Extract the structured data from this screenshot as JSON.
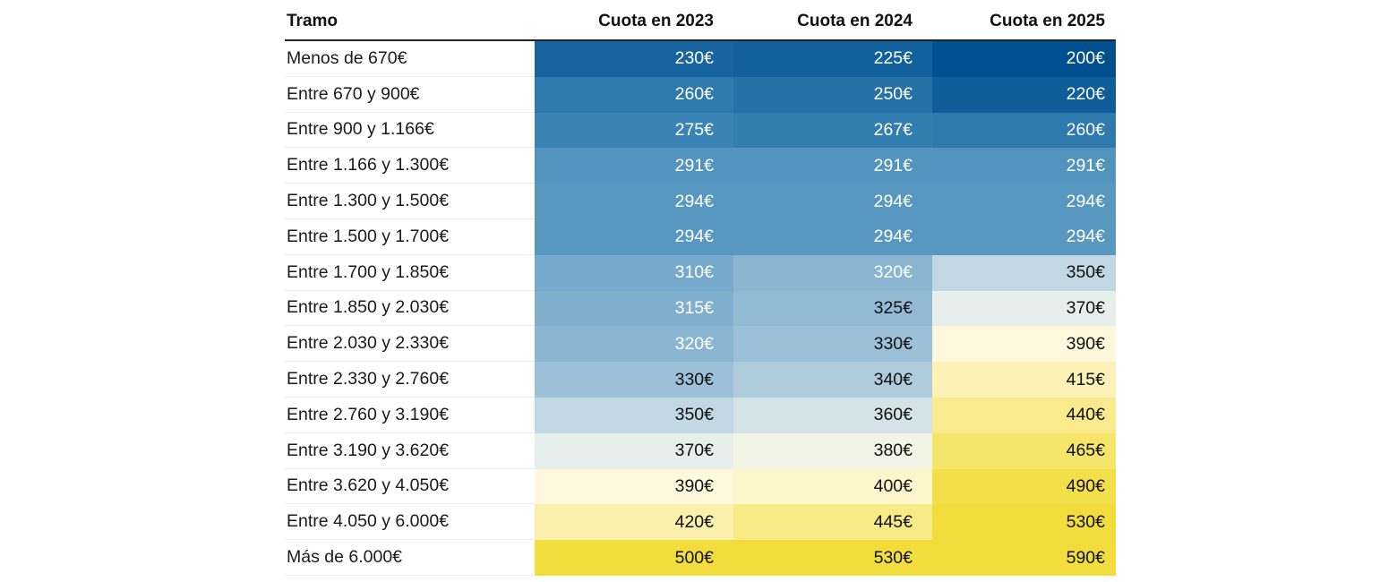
{
  "chart_data": {
    "type": "table",
    "title": "",
    "columns": [
      "Tramo",
      "Cuota en 2023",
      "Cuota en 2024",
      "Cuota en 2025"
    ],
    "years": [
      2023,
      2024,
      2025
    ],
    "rows": [
      {
        "tramo": "Menos de 670€",
        "values": [
          230,
          225,
          200
        ],
        "labels": [
          "230€",
          "225€",
          "200€"
        ]
      },
      {
        "tramo": "Entre 670 y 900€",
        "values": [
          260,
          250,
          220
        ],
        "labels": [
          "260€",
          "250€",
          "220€"
        ]
      },
      {
        "tramo": "Entre 900 y 1.166€",
        "values": [
          275,
          267,
          260
        ],
        "labels": [
          "275€",
          "267€",
          "260€"
        ]
      },
      {
        "tramo": "Entre 1.166 y 1.300€",
        "values": [
          291,
          291,
          291
        ],
        "labels": [
          "291€",
          "291€",
          "291€"
        ]
      },
      {
        "tramo": "Entre 1.300 y 1.500€",
        "values": [
          294,
          294,
          294
        ],
        "labels": [
          "294€",
          "294€",
          "294€"
        ]
      },
      {
        "tramo": "Entre 1.500 y 1.700€",
        "values": [
          294,
          294,
          294
        ],
        "labels": [
          "294€",
          "294€",
          "294€"
        ]
      },
      {
        "tramo": "Entre 1.700 y 1.850€",
        "values": [
          310,
          320,
          350
        ],
        "labels": [
          "310€",
          "320€",
          "350€"
        ]
      },
      {
        "tramo": "Entre 1.850 y 2.030€",
        "values": [
          315,
          325,
          370
        ],
        "labels": [
          "315€",
          "325€",
          "370€"
        ]
      },
      {
        "tramo": "Entre 2.030 y 2.330€",
        "values": [
          320,
          330,
          390
        ],
        "labels": [
          "320€",
          "330€",
          "390€"
        ]
      },
      {
        "tramo": "Entre 2.330 y 2.760€",
        "values": [
          330,
          340,
          415
        ],
        "labels": [
          "330€",
          "340€",
          "415€"
        ]
      },
      {
        "tramo": "Entre 2.760 y 3.190€",
        "values": [
          350,
          360,
          440
        ],
        "labels": [
          "350€",
          "360€",
          "440€"
        ]
      },
      {
        "tramo": "Entre 3.190 y 3.620€",
        "values": [
          370,
          380,
          465
        ],
        "labels": [
          "370€",
          "380€",
          "465€"
        ]
      },
      {
        "tramo": "Entre 3.620 y 4.050€",
        "values": [
          390,
          400,
          490
        ],
        "labels": [
          "390€",
          "400€",
          "490€"
        ]
      },
      {
        "tramo": "Entre 4.050 y 6.000€",
        "values": [
          420,
          445,
          530
        ],
        "labels": [
          "420€",
          "445€",
          "530€"
        ]
      },
      {
        "tramo": "Más de 6.000€",
        "values": [
          500,
          530,
          590
        ],
        "labels": [
          "500€",
          "530€",
          "590€"
        ]
      }
    ],
    "color_scale": {
      "stops": [
        {
          "value": 200,
          "color": "#004f8f"
        },
        {
          "value": 280,
          "color": "#3d87b7"
        },
        {
          "value": 330,
          "color": "#9cc0d8"
        },
        {
          "value": 370,
          "color": "#e6efec"
        },
        {
          "value": 390,
          "color": "#fef9dd"
        },
        {
          "value": 440,
          "color": "#f9eb8d"
        },
        {
          "value": 500,
          "color": "#f2dd3c"
        }
      ],
      "dark_text_threshold": 325,
      "light_text_color": "#ffffff",
      "dark_text_color": "#111111"
    }
  }
}
